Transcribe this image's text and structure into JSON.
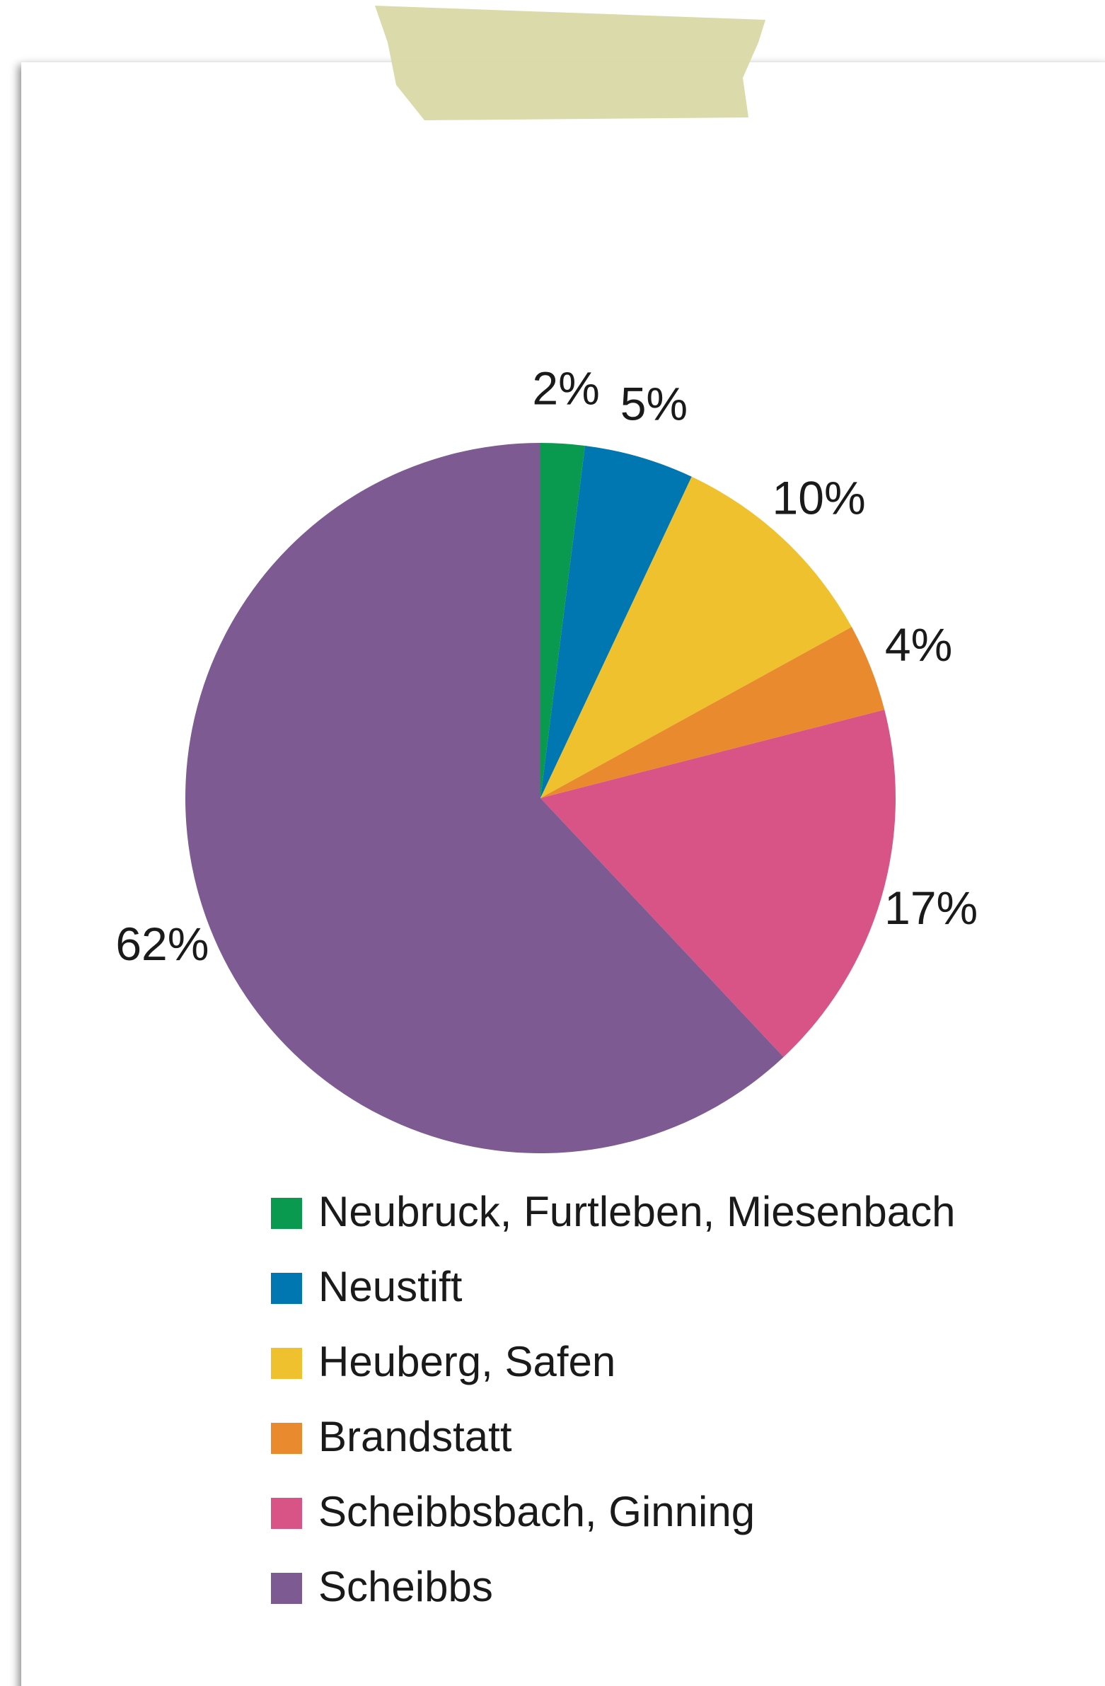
{
  "chart_data": {
    "type": "pie",
    "categories": [
      "Neubruck, Furtleben, Miesenbach",
      "Neustift",
      "Heuberg, Safen",
      "Brandstatt",
      "Scheibbsbach, Ginning",
      "Scheibbs"
    ],
    "values": [
      2,
      5,
      10,
      4,
      17,
      62
    ],
    "value_labels": [
      "2%",
      "5%",
      "10%",
      "4%",
      "17%",
      "62%"
    ],
    "colors": [
      "#0a9a4f",
      "#0077b0",
      "#f0c12e",
      "#ea8a2f",
      "#d85486",
      "#7d5a91"
    ]
  }
}
